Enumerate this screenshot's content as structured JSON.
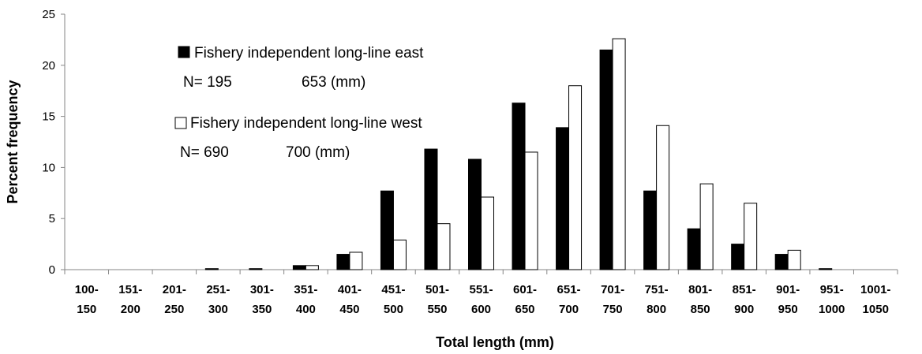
{
  "chart_data": {
    "type": "bar",
    "title": "",
    "xlabel": "Total length (mm)",
    "ylabel": "Percent frequency",
    "ylim": [
      0,
      25
    ],
    "yticks": [
      0,
      5,
      10,
      15,
      20,
      25
    ],
    "grid": false,
    "legend_position": "top-left inside plot",
    "categories": [
      [
        "100-",
        "150"
      ],
      [
        "151-",
        "200"
      ],
      [
        "201-",
        "250"
      ],
      [
        "251-",
        "300"
      ],
      [
        "301-",
        "350"
      ],
      [
        "351-",
        "400"
      ],
      [
        "401-",
        "450"
      ],
      [
        "451-",
        "500"
      ],
      [
        "501-",
        "550"
      ],
      [
        "551-",
        "600"
      ],
      [
        "601-",
        "650"
      ],
      [
        "651-",
        "700"
      ],
      [
        "701-",
        "750"
      ],
      [
        "751-",
        "800"
      ],
      [
        "801-",
        "850"
      ],
      [
        "851-",
        "900"
      ],
      [
        "901-",
        "950"
      ],
      [
        "951-",
        "1000"
      ],
      [
        "1001-",
        "1050"
      ]
    ],
    "series": [
      {
        "name": "Fishery independent long-line east",
        "n_label": "N= 195",
        "mean_label": "653 (mm)",
        "fill": "#000000",
        "values": [
          0,
          0,
          0,
          0.1,
          0.1,
          0.4,
          1.5,
          7.7,
          11.8,
          10.8,
          16.3,
          13.9,
          21.5,
          7.7,
          4.0,
          2.5,
          1.5,
          0.1,
          0
        ]
      },
      {
        "name": "Fishery independent long-line west",
        "n_label": "N= 690",
        "mean_label": "700 (mm)",
        "fill": "#ffffff",
        "values": [
          0,
          0,
          0,
          0,
          0,
          0.4,
          1.7,
          2.9,
          4.5,
          7.1,
          11.5,
          18.0,
          22.6,
          14.1,
          8.4,
          6.5,
          1.9,
          0,
          0
        ]
      }
    ]
  }
}
